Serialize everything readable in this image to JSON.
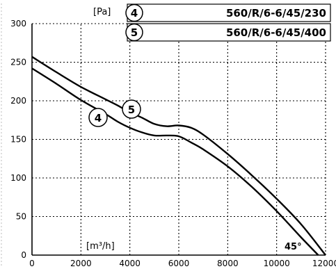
{
  "chart_data": {
    "type": "line",
    "title": "",
    "ylabel": "[Pa]",
    "xlabel": "[m³/h]",
    "xlim": [
      0,
      12000
    ],
    "ylim": [
      0,
      300
    ],
    "x_ticks": [
      "0",
      "2000",
      "4000",
      "6000",
      "8000",
      "10000",
      "12000"
    ],
    "y_ticks": [
      "0",
      "50",
      "100",
      "150",
      "200",
      "250",
      "300"
    ],
    "grid": true,
    "annotation": "45°",
    "legend": [
      {
        "marker": "4",
        "label": "560/R/6-6/45/230"
      },
      {
        "marker": "5",
        "label": "560/R/6-6/45/400"
      }
    ],
    "series": [
      {
        "marker": "4",
        "x": [
          0,
          1000,
          2000,
          3000,
          3500,
          4000,
          4500,
          5000,
          5500,
          6000,
          6500,
          7000,
          8000,
          9000,
          10000,
          11000,
          11700
        ],
        "y": [
          242,
          222,
          201,
          183,
          173,
          165,
          159,
          155,
          155,
          154,
          146,
          137,
          115,
          88,
          57,
          23,
          0
        ]
      },
      {
        "marker": "5",
        "x": [
          0,
          1000,
          2000,
          3000,
          3500,
          4000,
          4500,
          5000,
          5500,
          6000,
          6500,
          7000,
          8000,
          9000,
          10000,
          11000,
          12000
        ],
        "y": [
          257,
          237,
          218,
          202,
          194,
          185,
          178,
          170,
          167,
          168,
          165,
          156,
          131,
          103,
          73,
          40,
          0
        ]
      }
    ]
  }
}
